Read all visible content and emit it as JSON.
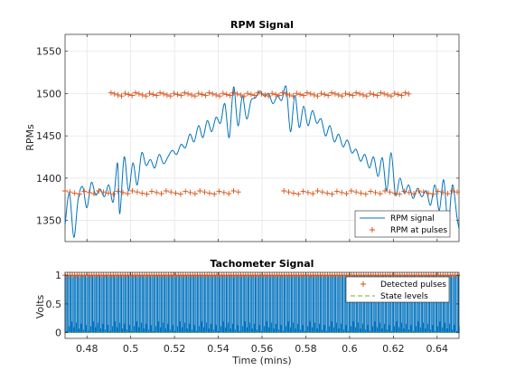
{
  "chart_data": [
    {
      "type": "line",
      "title": "RPM Signal",
      "xlabel": "",
      "ylabel": "RPMs",
      "xlim": [
        0.47,
        0.65
      ],
      "ylim": [
        1325,
        1570
      ],
      "xticks": [
        0.48,
        0.5,
        0.52,
        0.54,
        0.56,
        0.58,
        0.6,
        0.62,
        0.64
      ],
      "yticks": [
        1350,
        1400,
        1450,
        1500,
        1550
      ],
      "ytick_labels": [
        "1350",
        "1400",
        "1450",
        "1500",
        "1550"
      ],
      "grid": true,
      "legend": "bottom-right",
      "series": [
        {
          "name": "RPM signal",
          "style": "line",
          "color": "#0072BD",
          "points": [
            [
              0.47,
              1345
            ],
            [
              0.472,
              1382
            ],
            [
              0.474,
              1330
            ],
            [
              0.476,
              1375
            ],
            [
              0.478,
              1390
            ],
            [
              0.48,
              1365
            ],
            [
              0.482,
              1395
            ],
            [
              0.484,
              1380
            ],
            [
              0.486,
              1387
            ],
            [
              0.488,
              1378
            ],
            [
              0.49,
              1392
            ],
            [
              0.492,
              1372
            ],
            [
              0.494,
              1418
            ],
            [
              0.495,
              1358
            ],
            [
              0.497,
              1425
            ],
            [
              0.499,
              1385
            ],
            [
              0.501,
              1418
            ],
            [
              0.503,
              1392
            ],
            [
              0.505,
              1430
            ],
            [
              0.507,
              1415
            ],
            [
              0.509,
              1422
            ],
            [
              0.511,
              1412
            ],
            [
              0.513,
              1428
            ],
            [
              0.515,
              1417
            ],
            [
              0.517,
              1425
            ],
            [
              0.519,
              1433
            ],
            [
              0.521,
              1428
            ],
            [
              0.523,
              1440
            ],
            [
              0.525,
              1436
            ],
            [
              0.527,
              1452
            ],
            [
              0.529,
              1443
            ],
            [
              0.531,
              1462
            ],
            [
              0.533,
              1448
            ],
            [
              0.535,
              1468
            ],
            [
              0.537,
              1455
            ],
            [
              0.539,
              1472
            ],
            [
              0.541,
              1465
            ],
            [
              0.543,
              1488
            ],
            [
              0.545,
              1448
            ],
            [
              0.547,
              1508
            ],
            [
              0.549,
              1462
            ],
            [
              0.551,
              1497
            ],
            [
              0.553,
              1470
            ],
            [
              0.555,
              1492
            ],
            [
              0.557,
              1495
            ],
            [
              0.559,
              1503
            ],
            [
              0.561,
              1497
            ],
            [
              0.563,
              1500
            ],
            [
              0.565,
              1488
            ],
            [
              0.567,
              1497
            ],
            [
              0.569,
              1492
            ],
            [
              0.571,
              1508
            ],
            [
              0.573,
              1455
            ],
            [
              0.575,
              1498
            ],
            [
              0.577,
              1460
            ],
            [
              0.579,
              1485
            ],
            [
              0.581,
              1462
            ],
            [
              0.583,
              1480
            ],
            [
              0.585,
              1465
            ],
            [
              0.587,
              1470
            ],
            [
              0.589,
              1450
            ],
            [
              0.591,
              1462
            ],
            [
              0.593,
              1443
            ],
            [
              0.595,
              1452
            ],
            [
              0.597,
              1437
            ],
            [
              0.599,
              1445
            ],
            [
              0.601,
              1430
            ],
            [
              0.603,
              1434
            ],
            [
              0.605,
              1420
            ],
            [
              0.607,
              1428
            ],
            [
              0.609,
              1412
            ],
            [
              0.611,
              1425
            ],
            [
              0.613,
              1402
            ],
            [
              0.615,
              1424
            ],
            [
              0.617,
              1385
            ],
            [
              0.619,
              1430
            ],
            [
              0.621,
              1380
            ],
            [
              0.623,
              1400
            ],
            [
              0.625,
              1382
            ],
            [
              0.627,
              1392
            ],
            [
              0.629,
              1376
            ],
            [
              0.631,
              1388
            ],
            [
              0.633,
              1378
            ],
            [
              0.635,
              1385
            ],
            [
              0.637,
              1368
            ],
            [
              0.639,
              1392
            ],
            [
              0.641,
              1362
            ],
            [
              0.643,
              1398
            ],
            [
              0.645,
              1345
            ],
            [
              0.647,
              1392
            ],
            [
              0.649,
              1355
            ],
            [
              0.65,
              1340
            ]
          ]
        },
        {
          "name": "RPM at pulses",
          "style": "markers",
          "color": "#D95319",
          "marker": "+",
          "groups": [
            {
              "from": 0.47,
              "to": 0.55,
              "step": 0.0022,
              "value": 1383
            },
            {
              "from": 0.57,
              "to": 0.65,
              "step": 0.0022,
              "value": 1383
            },
            {
              "from": 0.491,
              "to": 0.628,
              "step": 0.0016,
              "value": 1499
            }
          ]
        }
      ]
    },
    {
      "type": "line",
      "title": "Tachometer Signal",
      "xlabel": "Time (mins)",
      "ylabel": "Volts",
      "xlim": [
        0.47,
        0.65
      ],
      "ylim": [
        -0.1,
        1.05
      ],
      "xticks": [
        0.48,
        0.5,
        0.52,
        0.54,
        0.56,
        0.58,
        0.6,
        0.62,
        0.64
      ],
      "xtick_labels": [
        "0.48",
        "0.5",
        "0.52",
        "0.54",
        "0.56",
        "0.58",
        "0.6",
        "0.62",
        "0.64"
      ],
      "yticks": [
        0,
        0.5,
        1
      ],
      "ytick_labels": [
        "0",
        "0.5",
        "1"
      ],
      "grid": true,
      "legend": "top-right",
      "series": [
        {
          "name": "",
          "style": "pulse-train",
          "color": "#0072BD",
          "high": 1,
          "low": 0,
          "period": 0.0011
        },
        {
          "name": "Detected pulses",
          "style": "markers",
          "color": "#D95319",
          "marker": "+",
          "value": 1,
          "period": 0.0011
        },
        {
          "name": "State levels",
          "style": "dashed",
          "color": "#77AC30",
          "levels": [
            0,
            1
          ]
        }
      ]
    }
  ]
}
